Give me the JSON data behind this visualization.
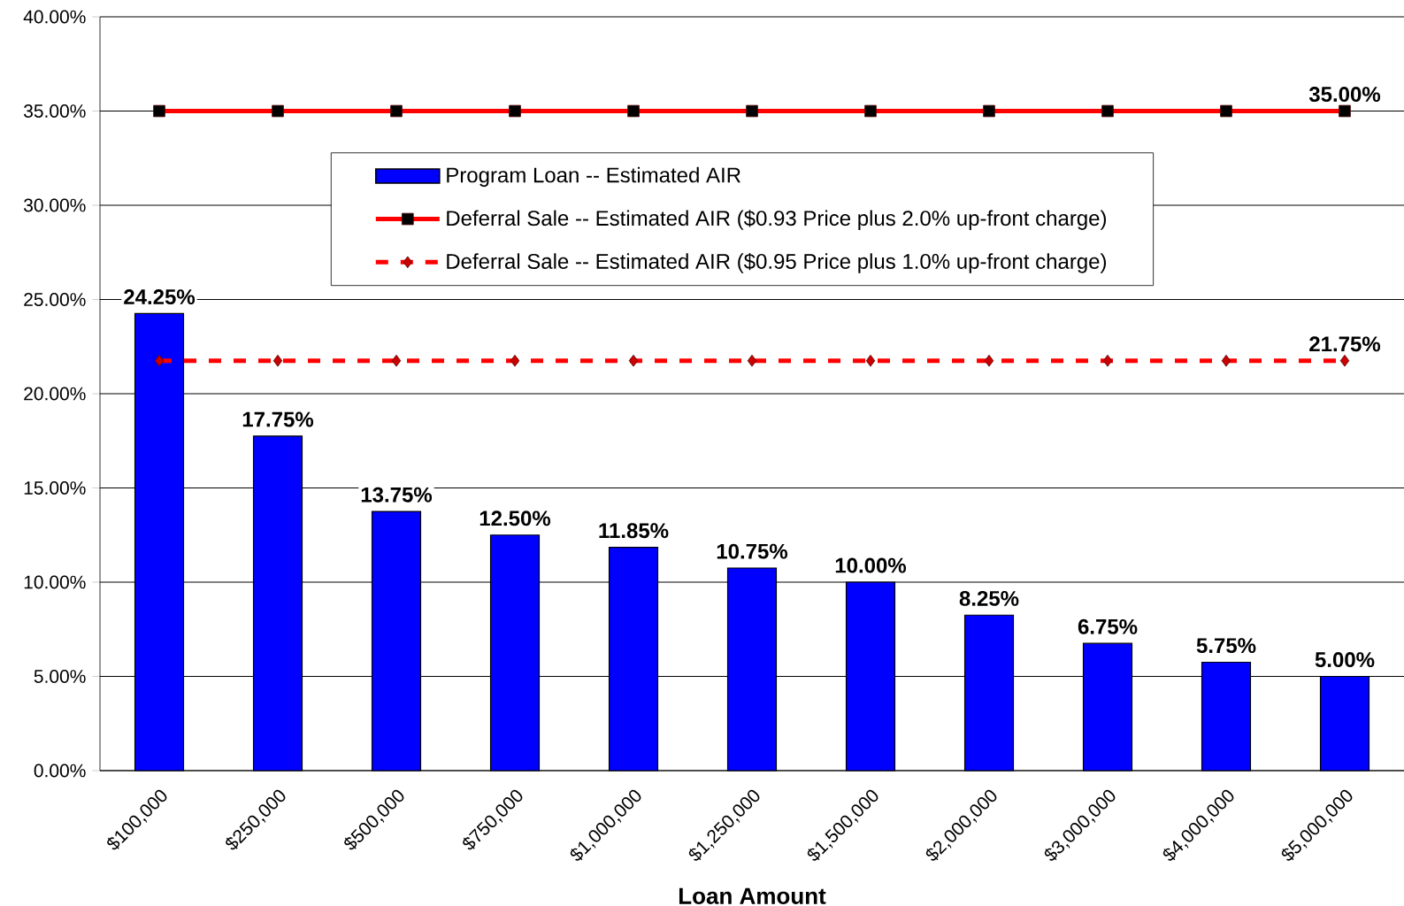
{
  "chart_data": {
    "type": "bar",
    "xlabel": "Loan Amount",
    "categories": [
      "$100,000",
      "$250,000",
      "$500,000",
      "$750,000",
      "$1,000,000",
      "$1,250,000",
      "$1,500,000",
      "$2,000,000",
      "$3,000,000",
      "$4,000,000",
      "$5,000,000"
    ],
    "series": [
      {
        "name": "Program Loan -- Estimated AIR",
        "color": "#0000ff",
        "values": [
          24.25,
          17.75,
          13.75,
          12.5,
          11.85,
          10.75,
          10.0,
          8.25,
          6.75,
          5.75,
          5.0
        ],
        "value_labels": [
          "24.25%",
          "17.75%",
          "13.75%",
          "12.50%",
          "11.85%",
          "10.75%",
          "10.00%",
          "8.25%",
          "6.75%",
          "5.75%",
          "5.00%"
        ]
      },
      {
        "name": "Deferral Sale -- Estimated AIR ($0.93 Price plus 2.0% up-front charge)",
        "type": "line",
        "color": "#ff0000",
        "marker": "square",
        "line_style": "solid",
        "values": [
          35,
          35,
          35,
          35,
          35,
          35,
          35,
          35,
          35,
          35,
          35
        ],
        "value_labels": [
          null,
          null,
          null,
          null,
          null,
          null,
          null,
          null,
          null,
          null,
          "35.00%"
        ]
      },
      {
        "name": "Deferral Sale -- Estimated AIR ($0.95 Price plus 1.0% up-front charge)",
        "type": "line",
        "color": "#ff0000",
        "marker": "diamond",
        "line_style": "dashed",
        "values": [
          21.75,
          21.75,
          21.75,
          21.75,
          21.75,
          21.75,
          21.75,
          21.75,
          21.75,
          21.75,
          21.75
        ],
        "value_labels": [
          null,
          null,
          null,
          null,
          null,
          null,
          null,
          null,
          null,
          null,
          "21.75%"
        ]
      }
    ],
    "ylim": [
      0,
      40
    ],
    "yticks": [
      {
        "value": 0,
        "label": "0.00%"
      },
      {
        "value": 5,
        "label": "5.00%"
      },
      {
        "value": 10,
        "label": "10.00%"
      },
      {
        "value": 15,
        "label": "15.00%"
      },
      {
        "value": 20,
        "label": "20.00%"
      },
      {
        "value": 25,
        "label": "25.00%"
      },
      {
        "value": 30,
        "label": "30.00%"
      },
      {
        "value": 35,
        "label": "35.00%"
      },
      {
        "value": 40,
        "label": "40.00%"
      }
    ],
    "grid": "y",
    "legend": "top"
  }
}
